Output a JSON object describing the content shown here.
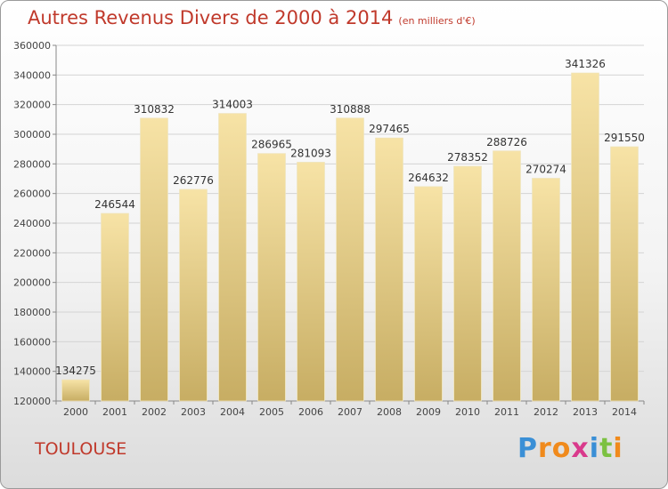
{
  "header": {
    "title": "Autres Revenus Divers de 2000 à 2014",
    "unit_note": "(en milliers d'€)"
  },
  "footer": {
    "city": "TOULOUSE",
    "brand": {
      "letters": [
        "P",
        "r",
        "o",
        "x",
        "i",
        "t",
        "i"
      ],
      "colors": [
        "#3a8fd6",
        "#f08a1c",
        "#f08a1c",
        "#d93a8c",
        "#3a8fd6",
        "#7cc142",
        "#f08a1c"
      ]
    }
  },
  "chart_data": {
    "type": "bar",
    "title": "Autres Revenus Divers de 2000 à 2014",
    "subtitle": "(en milliers d'€)",
    "xlabel": "",
    "ylabel": "",
    "categories": [
      "2000",
      "2001",
      "2002",
      "2003",
      "2004",
      "2005",
      "2006",
      "2007",
      "2008",
      "2009",
      "2010",
      "2011",
      "2012",
      "2013",
      "2014"
    ],
    "values": [
      134275,
      246544,
      310832,
      262776,
      314003,
      286965,
      281093,
      310888,
      297465,
      264632,
      278352,
      288726,
      270274,
      341326,
      291550
    ],
    "ylim": [
      120000,
      360000
    ],
    "yticks": [
      120000,
      140000,
      160000,
      180000,
      200000,
      220000,
      240000,
      260000,
      280000,
      300000,
      320000,
      340000,
      360000
    ],
    "grid": true,
    "bar_color_top": "#f7e3a6",
    "bar_color_bottom": "#c7ad63"
  }
}
